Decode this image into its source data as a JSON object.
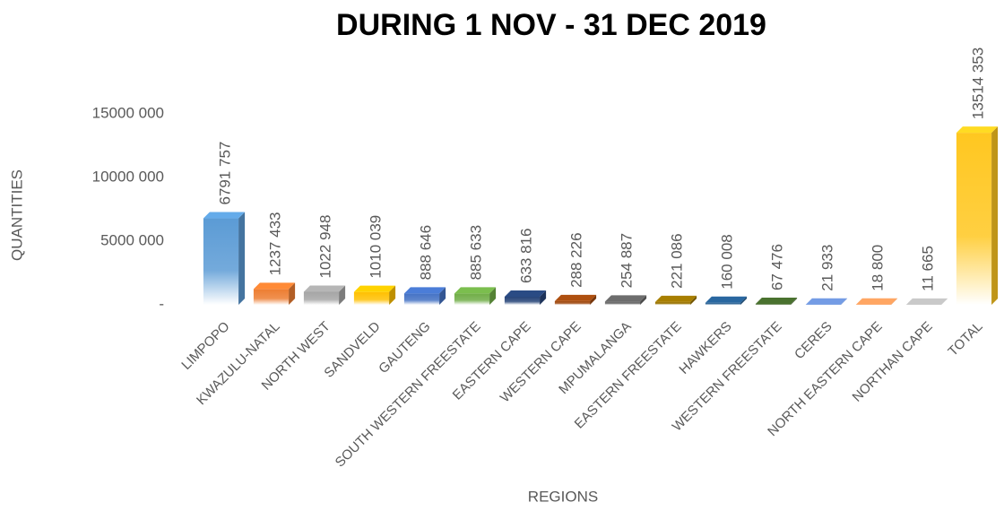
{
  "chart_data": {
    "type": "bar3d",
    "title": "DURING 1 NOV - 31 DEC 2019",
    "xlabel": "REGIONS",
    "ylabel": "QUANTITIES",
    "categories": [
      "LIMPOPO",
      "KWAZULU-NATAL",
      "NORTH WEST",
      "SANDVELD",
      "GAUTENG",
      "SOUTH WESTERN FREESTATE",
      "EASTERN CAPE",
      "WESTERN CAPE",
      "MPUMALANGA",
      "EASTERN FREESTATE",
      "HAWKERS",
      "WESTERN FREESTATE",
      "CERES",
      "NORTH EASTERN CAPE",
      "NORTHAN CAPE",
      "TOTAL"
    ],
    "values": [
      6791757,
      1237433,
      1022948,
      1010039,
      888646,
      885633,
      633816,
      288226,
      254887,
      221086,
      160008,
      67476,
      21933,
      18800,
      11665,
      13514353
    ],
    "value_labels": [
      "6791 757",
      "1237 433",
      "1022 948",
      "1010 039",
      "888 646",
      "885 633",
      "633 816",
      "288 226",
      "254 887",
      "221 086",
      "160 008",
      "67 476",
      "21 933",
      "18 800",
      "11 665",
      "13514 353"
    ],
    "colors": [
      "#5b9bd5",
      "#ed7d31",
      "#a5a5a5",
      "#ffc000",
      "#4472c4",
      "#70ad47",
      "#264478",
      "#9e480e",
      "#636363",
      "#997300",
      "#255e91",
      "#43682b",
      "#698ed0",
      "#f1975a",
      "#b7b7b7",
      "#ffc720"
    ],
    "ylim": [
      0,
      15000000
    ],
    "yticks": [
      {
        "value": 0,
        "label": "-"
      },
      {
        "value": 5000000,
        "label": "5000 000"
      },
      {
        "value": 10000000,
        "label": "10000 000"
      },
      {
        "value": 15000000,
        "label": "15000 000"
      }
    ],
    "grid": false
  }
}
